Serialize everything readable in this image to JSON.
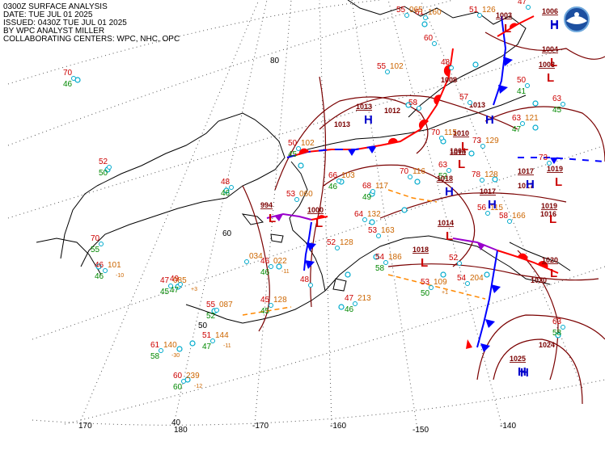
{
  "header": {
    "line1": "0300Z SURFACE ANALYSIS",
    "line2": "DATE: TUE JUL 01 2025",
    "line3": "ISSUED: 0430Z TUE JUL 01 2025",
    "line4": "BY WPC ANALYST MILLER",
    "line5": "COLLABORATING CENTERS: WPC, NHC, OPC"
  },
  "colors": {
    "isobar": "#7a0000",
    "high": "#0000cc",
    "low": "#cc0000",
    "temp": "#cc0000",
    "dewpoint": "#008800",
    "pressure": "#cc6600",
    "station": "#00aacc",
    "cold_front": "#0000ff",
    "warm_front": "#ff0000",
    "occluded": "#9900cc",
    "trough": "#ff8800"
  },
  "logo": {
    "name": "noaa-logo",
    "text": "NOAA"
  },
  "grid": {
    "lat_labels": [
      "80",
      "60",
      "50",
      "40"
    ],
    "lon_labels": [
      "170",
      "180",
      "-170",
      "-160",
      "-150",
      "-140"
    ]
  },
  "pressure_centers": [
    {
      "type": "H",
      "value": "1006"
    },
    {
      "type": "L",
      "value": "1003"
    },
    {
      "type": "H",
      "value": ""
    },
    {
      "type": "L",
      "value": "1004"
    },
    {
      "type": "L",
      "value": "1003"
    },
    {
      "type": "H",
      "value": "1013"
    },
    {
      "type": "H",
      "value": ""
    },
    {
      "type": "L",
      "value": "1004"
    },
    {
      "type": "L",
      "value": "1010"
    },
    {
      "type": "H",
      "value": "1017"
    },
    {
      "type": "L",
      "value": "1019"
    },
    {
      "type": "H",
      "value": "1018"
    },
    {
      "type": "H",
      "value": "1017"
    },
    {
      "type": "L",
      "value": "1019"
    },
    {
      "type": "L",
      "value": "994"
    },
    {
      "type": "L",
      "value": "1000"
    },
    {
      "type": "L",
      "value": "1014"
    },
    {
      "type": "L",
      "value": "1018"
    },
    {
      "type": "L",
      "value": "1020"
    },
    {
      "type": "H",
      "value": "1025"
    },
    {
      "type": "H",
      "value": ""
    }
  ],
  "isobar_labels": [
    "1012",
    "1013",
    "1017",
    "1013",
    "1024",
    "1020",
    "1016",
    "1008",
    "1010"
  ],
  "stations": [
    {
      "t": "70",
      "td": "46",
      "p": ""
    },
    {
      "t": "52",
      "td": "50",
      "p": ""
    },
    {
      "t": "70",
      "td": "55",
      "p": ""
    },
    {
      "t": "46",
      "td": "46",
      "p": "101",
      "tend": "-10"
    },
    {
      "t": "47",
      "td": "45",
      "p": "085"
    },
    {
      "t": "49",
      "td": "47",
      "p": "",
      "tend": "+3"
    },
    {
      "t": "55",
      "td": "52",
      "p": "087"
    },
    {
      "t": "51",
      "td": "47",
      "p": "144",
      "tend": "-11"
    },
    {
      "t": "61",
      "td": "58",
      "p": "140",
      "tend": "-30"
    },
    {
      "t": "60",
      "td": "60",
      "p": "239",
      "tend": "-12"
    },
    {
      "t": "48",
      "td": "46",
      "p": ""
    },
    {
      "t": "46",
      "td": "46",
      "p": "022",
      "tend": "-11"
    },
    {
      "t": "",
      "td": "",
      "p": "034"
    },
    {
      "t": "45",
      "td": "45",
      "p": "128"
    },
    {
      "t": "48",
      "td": "",
      "p": ""
    },
    {
      "t": "50",
      "td": "45",
      "p": "102"
    },
    {
      "t": "53",
      "td": "",
      "p": "060"
    },
    {
      "t": "66",
      "td": "46",
      "p": "103"
    },
    {
      "t": "68",
      "td": "49",
      "p": "117"
    },
    {
      "t": "64",
      "td": "",
      "p": "132"
    },
    {
      "t": "53",
      "td": "",
      "p": "163"
    },
    {
      "t": "54",
      "td": "58",
      "p": "186"
    },
    {
      "t": "52",
      "td": "",
      "p": "128"
    },
    {
      "t": "47",
      "td": "46",
      "p": "213"
    },
    {
      "t": "70",
      "td": "",
      "p": "116"
    },
    {
      "t": "63",
      "td": "52",
      "p": ""
    },
    {
      "t": "70",
      "td": "",
      "p": "115"
    },
    {
      "t": "73",
      "td": "",
      "p": "129"
    },
    {
      "t": "78",
      "td": "",
      "p": "128"
    },
    {
      "t": "73",
      "td": "",
      "p": ""
    },
    {
      "t": "63",
      "td": "47",
      "p": "121"
    },
    {
      "t": "53",
      "td": "50",
      "p": "109",
      "tend": "+1"
    },
    {
      "t": "54",
      "td": "",
      "p": "204"
    },
    {
      "t": "52",
      "td": "",
      "p": ""
    },
    {
      "t": "58",
      "td": "",
      "p": ""
    },
    {
      "t": "63",
      "td": "45",
      "p": ""
    },
    {
      "t": "50",
      "td": "41",
      "p": ""
    },
    {
      "t": "48",
      "td": "",
      "p": ""
    },
    {
      "t": "57",
      "td": "",
      "p": ""
    },
    {
      "t": "63",
      "td": "58",
      "p": ""
    },
    {
      "t": "55",
      "td": "",
      "p": "102"
    },
    {
      "t": "61",
      "td": "",
      "p": "160"
    },
    {
      "t": "60",
      "td": "",
      "p": ""
    },
    {
      "t": "58",
      "td": "",
      "p": "166"
    },
    {
      "t": "56",
      "td": "",
      "p": "115"
    },
    {
      "t": "55",
      "td": "",
      "p": "065"
    },
    {
      "t": "51",
      "td": "",
      "p": "126"
    },
    {
      "t": "47",
      "td": "",
      "p": ""
    }
  ]
}
